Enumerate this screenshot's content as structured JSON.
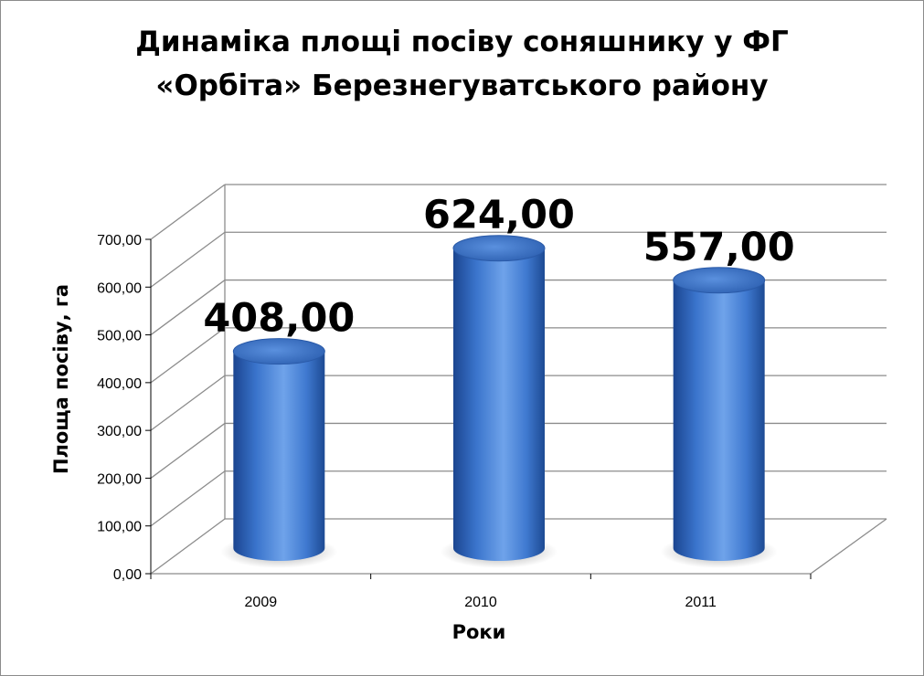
{
  "chart_data": {
    "type": "bar",
    "title_lines": [
      "Динаміка площі посіву соняшнику у ФГ",
      "«Орбіта» Березнегуватського району"
    ],
    "categories": [
      "2009",
      "2010",
      "2011"
    ],
    "values": [
      408,
      624,
      557
    ],
    "value_labels": [
      "408,00",
      "624,00",
      "557,00"
    ],
    "xlabel": "Роки",
    "ylabel": "Площа посіву, га",
    "ylim": [
      0,
      700
    ],
    "y_ticks": [
      "0,00",
      "100,00",
      "200,00",
      "300,00",
      "400,00",
      "500,00",
      "600,00",
      "700,00"
    ],
    "grid": true,
    "legend": "none",
    "style": "3d-cylinder",
    "colors": {
      "bar": "#3a74cc",
      "bar_dark": "#1d4a93",
      "bar_light": "#7fb0ef",
      "grid": "#8c8c8c"
    }
  }
}
